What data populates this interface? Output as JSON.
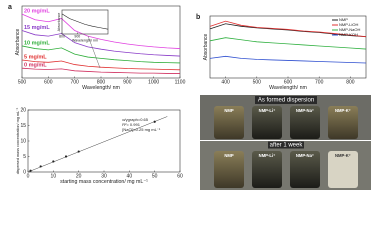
{
  "chart_data": [
    {
      "type": "line",
      "panel_label": "a",
      "xlabel": "Wavelength/ nm",
      "ylabel": "Absorbance",
      "x": [
        500,
        550,
        600,
        650,
        700,
        750,
        800,
        850,
        900,
        950,
        1000,
        1050,
        1100
      ],
      "xlim": [
        500,
        1100
      ],
      "xticks": [
        500,
        600,
        700,
        800,
        900,
        1000,
        1100
      ],
      "ylim": [
        0,
        2.2
      ],
      "series": [
        {
          "name": "20 mg/mL",
          "color": "#e040e0",
          "values": [
            1.95,
            1.78,
            1.72,
            1.82,
            1.45,
            1.28,
            1.18,
            1.1,
            1.04,
            0.99,
            0.95,
            0.92,
            0.9
          ]
        },
        {
          "name": "15 mg/mL",
          "color": "#8a3cc8",
          "values": [
            1.45,
            1.32,
            1.28,
            1.36,
            1.08,
            0.95,
            0.88,
            0.82,
            0.78,
            0.74,
            0.71,
            0.69,
            0.67
          ]
        },
        {
          "name": "10 mg/mL",
          "color": "#2fae3a",
          "values": [
            0.98,
            0.9,
            0.86,
            0.92,
            0.73,
            0.64,
            0.6,
            0.56,
            0.53,
            0.5,
            0.48,
            0.47,
            0.46
          ]
        },
        {
          "name": "5 mg/mL",
          "color": "#e03030",
          "values": [
            0.55,
            0.5,
            0.48,
            0.52,
            0.41,
            0.36,
            0.33,
            0.31,
            0.29,
            0.28,
            0.27,
            0.26,
            0.25
          ]
        },
        {
          "name": "0 mg/mL",
          "color": "#d03060",
          "values": [
            0.3,
            0.27,
            0.26,
            0.28,
            0.22,
            0.2,
            0.18,
            0.17,
            0.16,
            0.15,
            0.15,
            0.14,
            0.14
          ]
        }
      ]
    },
    {
      "type": "line",
      "xlabel": "Wavelength/ nm",
      "ylabel": "Absorbance",
      "x": [
        800,
        850,
        900,
        950,
        1000,
        1050,
        1100
      ],
      "xlim": [
        800,
        1100
      ],
      "xticks": [
        800,
        900
      ],
      "ylim": [
        0.8,
        1.3
      ],
      "color": "#222",
      "values": [
        1.22,
        1.12,
        1.06,
        1.0,
        0.96,
        0.93,
        0.9
      ]
    },
    {
      "type": "scatter",
      "xlabel": "starting mass concentration/ mg mL⁻¹",
      "ylabel": "dispersed mass concentration/ mg mL⁻¹",
      "x": [
        1,
        5,
        10,
        15,
        20,
        50
      ],
      "values": [
        0.4,
        1.8,
        3.4,
        5.0,
        6.6,
        16.2
      ],
      "xlim": [
        0,
        60
      ],
      "xticks": [
        0,
        10,
        20,
        30,
        40,
        50,
        60
      ],
      "ylim": [
        0,
        20
      ],
      "yticks": [
        0,
        5,
        10,
        15,
        20
      ],
      "color": "#222",
      "fit": {
        "x": [
          0,
          55
        ],
        "values": [
          0,
          17.9
        ]
      },
      "annotations": [
        "α/γgraph=0.65",
        "R²= 0.991",
        "[NaCl]=0.25 mg mL⁻¹"
      ]
    },
    {
      "type": "line",
      "panel_label": "b",
      "xlabel": "Wavelength/ nm",
      "ylabel": "Absorbance",
      "x": [
        350,
        400,
        450,
        500,
        550,
        600,
        650,
        700,
        750,
        800,
        850
      ],
      "xlim": [
        350,
        850
      ],
      "xticks": [
        400,
        500,
        600,
        700,
        800
      ],
      "ylim": [
        0,
        1.2
      ],
      "legend": "upper right",
      "series": [
        {
          "name": "NMP",
          "color": "#222222",
          "values": [
            0.95,
            1.05,
            1.0,
            0.97,
            0.95,
            0.93,
            0.9,
            0.88,
            0.85,
            0.82,
            0.8
          ]
        },
        {
          "name": "NMP-LiOH",
          "color": "#e03030",
          "values": [
            1.0,
            1.1,
            1.02,
            0.98,
            0.96,
            0.94,
            0.91,
            0.89,
            0.86,
            0.83,
            0.8
          ]
        },
        {
          "name": "NMP-NaOH",
          "color": "#30b040",
          "values": [
            0.72,
            0.78,
            0.74,
            0.7,
            0.68,
            0.66,
            0.64,
            0.62,
            0.6,
            0.58,
            0.56
          ]
        },
        {
          "name": "NMP-KOH",
          "color": "#3050d0",
          "values": [
            0.38,
            0.42,
            0.38,
            0.36,
            0.35,
            0.34,
            0.33,
            0.32,
            0.31,
            0.3,
            0.29
          ]
        }
      ]
    }
  ],
  "photos": {
    "top": {
      "title": "As formed dispersion",
      "labels": [
        "NMP",
        "NMP-Li⁺",
        "NMP-Na⁺",
        "NMP-K⁺"
      ]
    },
    "bottom": {
      "title": "after 1 week",
      "labels": [
        "NMP",
        "NMP-Li⁺",
        "NMP-Na⁺",
        "NMP-K⁺"
      ]
    }
  }
}
